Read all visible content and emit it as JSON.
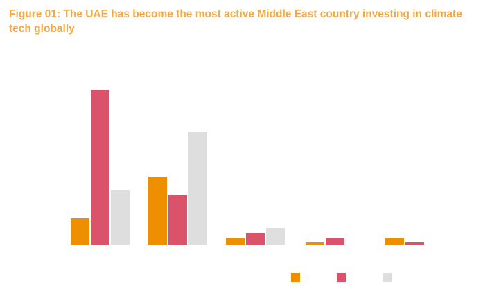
{
  "title": "Figure 01: The UAE has become the most active Middle East country investing in climate tech globally",
  "colors": {
    "title": "#F5A742",
    "series": [
      "#EE8F00",
      "#DB536A",
      "#DEDEDE"
    ]
  },
  "chart_data": {
    "type": "bar",
    "title": "Figure 01: The UAE has become the most active Middle East country investing in climate tech globally",
    "categories": [
      "",
      "",
      "",
      "",
      ""
    ],
    "series": [
      {
        "values": [
          38,
          98,
          10,
          4,
          10
        ]
      },
      {
        "values": [
          223,
          72,
          17,
          10,
          4
        ]
      },
      {
        "values": [
          79,
          163,
          24,
          0,
          0
        ]
      }
    ],
    "ylim": [
      0,
      232
    ],
    "grid": false,
    "legend": "bottom-right",
    "xlabel": "",
    "ylabel": ""
  }
}
